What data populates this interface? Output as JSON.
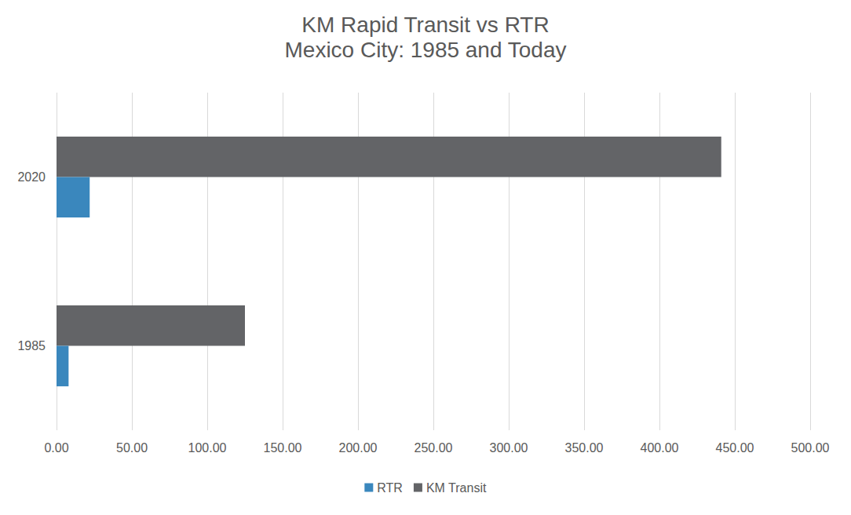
{
  "chart_data": {
    "type": "bar",
    "orientation": "horizontal",
    "title": "KM Rapid Transit vs RTR",
    "subtitle": "Mexico City: 1985 and Today",
    "categories": [
      "1985",
      "2020"
    ],
    "series": [
      {
        "name": "RTR",
        "color": "#3a87bd",
        "values": [
          8,
          22
        ]
      },
      {
        "name": "KM Transit",
        "color": "#636467",
        "values": [
          125,
          441
        ]
      }
    ],
    "xlim": [
      0,
      500
    ],
    "xticks": [
      {
        "value": 0,
        "label": "0.00"
      },
      {
        "value": 50,
        "label": "50.00"
      },
      {
        "value": 100,
        "label": "100.00"
      },
      {
        "value": 150,
        "label": "150.00"
      },
      {
        "value": 200,
        "label": "200.00"
      },
      {
        "value": 250,
        "label": "250.00"
      },
      {
        "value": 300,
        "label": "300.00"
      },
      {
        "value": 350,
        "label": "350.00"
      },
      {
        "value": 400,
        "label": "400.00"
      },
      {
        "value": 450,
        "label": "450.00"
      },
      {
        "value": 500,
        "label": "500.00"
      }
    ],
    "grid": true,
    "legend": "bottom"
  }
}
